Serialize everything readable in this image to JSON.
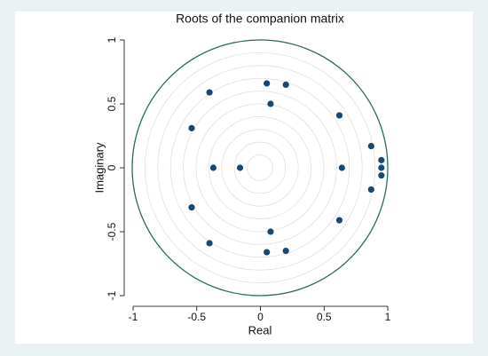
{
  "chart_data": {
    "type": "scatter",
    "title": "Roots of the companion matrix",
    "x_label": "Real",
    "y_label": "Imaginary",
    "color": "#1a476f",
    "x": [
      0.05,
      0.2,
      -0.4,
      0.08,
      0.62,
      -0.54,
      0.87,
      0.95,
      0.95,
      0.95,
      0.87,
      -0.37,
      -0.16,
      0.64,
      -0.54,
      0.62,
      0.08,
      -0.4,
      0.05,
      0.2
    ],
    "values": [
      0.66,
      0.65,
      0.59,
      0.5,
      0.41,
      0.31,
      0.17,
      0.06,
      0,
      -0.06,
      -0.17,
      0,
      0,
      0,
      -0.31,
      -0.41,
      -0.5,
      -0.59,
      -0.66,
      -0.65
    ],
    "xlim": [
      -1,
      1
    ],
    "ylim": [
      -1,
      1
    ],
    "xticks": [
      -1,
      -0.5,
      0,
      0.5,
      1
    ],
    "yticks": [
      -1,
      -0.5,
      0,
      0.5,
      1
    ]
  }
}
